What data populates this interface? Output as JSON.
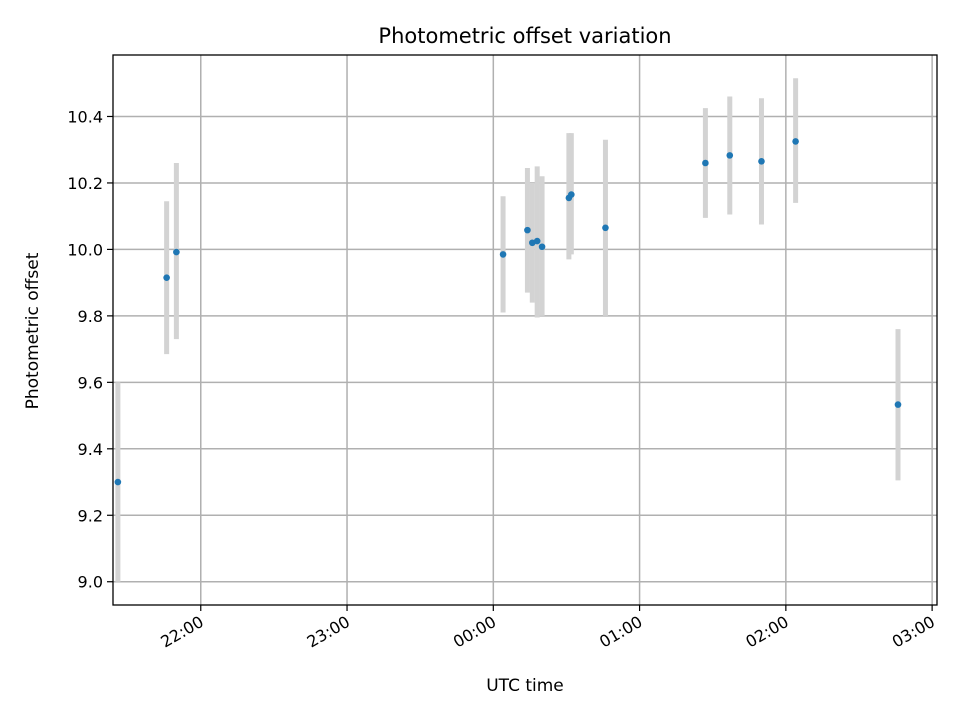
{
  "chart_data": {
    "type": "scatter",
    "title": "Photometric offset variation",
    "xlabel": "UTC time",
    "ylabel": "Photometric offset",
    "x_kind": "time",
    "xlim": [
      "21:24",
      "03:02"
    ],
    "ylim": [
      8.93,
      10.585
    ],
    "x_ticks": [
      "22:00",
      "23:00",
      "00:00",
      "01:00",
      "02:00",
      "03:00"
    ],
    "y_ticks": [
      "9.0",
      "9.2",
      "9.4",
      "9.6",
      "9.8",
      "10.0",
      "10.2",
      "10.4"
    ],
    "grid": true,
    "colors": {
      "point": "#1f77b4",
      "errorbar": "#d3d3d3",
      "grid": "#b0b0b0",
      "axis": "#000000"
    },
    "series": [
      {
        "points": [
          {
            "x": "21:26",
            "y": 9.3,
            "yerr_low": 9.0,
            "yerr_high": 9.6
          },
          {
            "x": "21:46",
            "y": 9.915,
            "yerr_low": 9.685,
            "yerr_high": 10.145
          },
          {
            "x": "21:50",
            "y": 9.992,
            "yerr_low": 9.73,
            "yerr_high": 10.26
          },
          {
            "x": "00:04",
            "y": 9.985,
            "yerr_low": 9.81,
            "yerr_high": 10.16
          },
          {
            "x": "00:14",
            "y": 10.058,
            "yerr_low": 9.87,
            "yerr_high": 10.245
          },
          {
            "x": "00:16",
            "y": 10.02,
            "yerr_low": 9.84,
            "yerr_high": 10.2
          },
          {
            "x": "00:18",
            "y": 10.025,
            "yerr_low": 9.795,
            "yerr_high": 10.25
          },
          {
            "x": "00:20",
            "y": 10.008,
            "yerr_low": 9.8,
            "yerr_high": 10.22
          },
          {
            "x": "00:31",
            "y": 10.155,
            "yerr_low": 9.97,
            "yerr_high": 10.35
          },
          {
            "x": "00:32",
            "y": 10.165,
            "yerr_low": 9.985,
            "yerr_high": 10.35
          },
          {
            "x": "00:46",
            "y": 10.065,
            "yerr_low": 9.8,
            "yerr_high": 10.33
          },
          {
            "x": "01:27",
            "y": 10.26,
            "yerr_low": 10.095,
            "yerr_high": 10.425
          },
          {
            "x": "01:37",
            "y": 10.283,
            "yerr_low": 10.105,
            "yerr_high": 10.46
          },
          {
            "x": "01:50",
            "y": 10.265,
            "yerr_low": 10.075,
            "yerr_high": 10.455
          },
          {
            "x": "02:04",
            "y": 10.325,
            "yerr_low": 10.14,
            "yerr_high": 10.515
          },
          {
            "x": "02:46",
            "y": 9.533,
            "yerr_low": 9.305,
            "yerr_high": 9.76
          }
        ]
      }
    ]
  }
}
